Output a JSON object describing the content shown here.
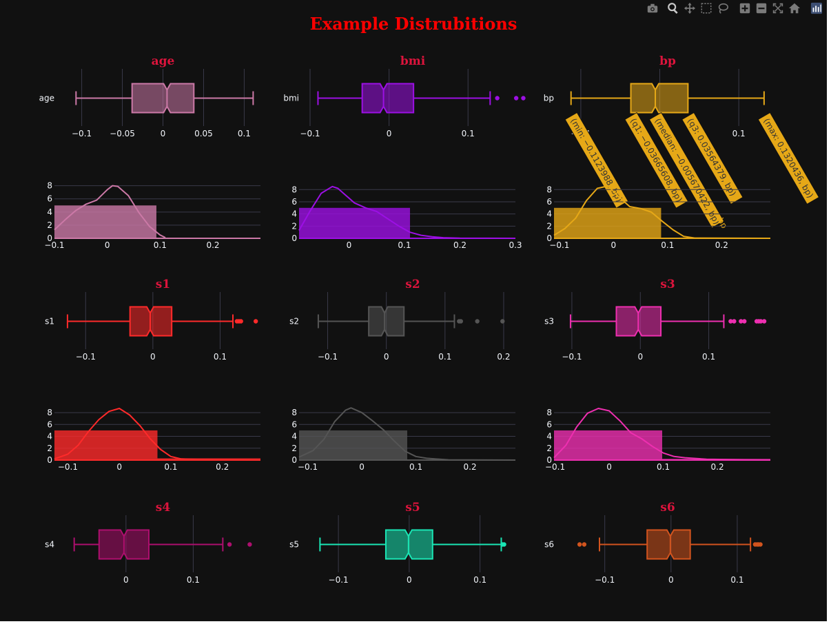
{
  "page": {
    "title": "Example Distrubitions",
    "title_color": "#ff0000",
    "subplot_title_color": "#dc143c",
    "background": "#111111",
    "gridline_color": "#3a3a4a",
    "tick_color": "#f2f5fa"
  },
  "modebar": {
    "buttons": [
      "camera-icon",
      "zoom-icon",
      "pan-icon",
      "box-select-icon",
      "lasso-select-icon",
      "zoom-in-icon",
      "zoom-out-icon",
      "autoscale-icon",
      "reset-axes-icon",
      "plotly-logo-icon"
    ]
  },
  "chart_data": [
    {
      "id": "age",
      "type": "box",
      "title": "age",
      "ylabel": "age",
      "color": "#cc79a7",
      "xlim": [
        -0.12,
        0.12
      ],
      "xticks": [
        -0.1,
        -0.05,
        0,
        0.05,
        0.1
      ],
      "xtick_labels": [
        "−0.1",
        "−0.05",
        "0",
        "0.05",
        "0.1"
      ],
      "box": {
        "min": -0.107,
        "q1": -0.038,
        "median": 0.005,
        "q3": 0.038,
        "max": 0.111
      },
      "outliers": []
    },
    {
      "id": "age",
      "type": "histogram+density",
      "color": "#cc79a7",
      "xlim": [
        -0.1,
        0.29
      ],
      "ylim": [
        0,
        8.8
      ],
      "xticks": [
        -0.1,
        0,
        0.1,
        0.2
      ],
      "xtick_labels": [
        "−0.1",
        "0",
        "0.1",
        "0.2"
      ],
      "yticks": [
        0,
        2,
        4,
        6,
        8
      ],
      "ytick_labels": [
        "0",
        "2",
        "4",
        "6",
        "8"
      ],
      "bars": [
        {
          "x0": -0.107,
          "x1": 0.093,
          "value": 5
        }
      ],
      "density": {
        "x": [
          -0.1,
          -0.08,
          -0.06,
          -0.04,
          -0.02,
          0,
          0.01,
          0.02,
          0.04,
          0.06,
          0.08,
          0.1,
          0.11
        ],
        "y": [
          1.3,
          2.8,
          4.2,
          5.2,
          5.8,
          7.4,
          8.0,
          7.9,
          6.5,
          3.9,
          1.8,
          0.5,
          0.1
        ]
      }
    },
    {
      "id": "bmi",
      "type": "box",
      "title": "bmi",
      "ylabel": "bmi",
      "color": "#9c10e4",
      "xlim": [
        -0.1,
        0.16
      ],
      "xticks": [
        -0.1,
        0,
        0.1
      ],
      "xtick_labels": [
        "−0.1",
        "0",
        "0.1"
      ],
      "box": {
        "min": -0.09,
        "q1": -0.034,
        "median": -0.007,
        "q3": 0.031,
        "max": 0.128
      },
      "outliers": [
        0.137,
        0.161,
        0.17
      ]
    },
    {
      "id": "bmi",
      "type": "histogram+density",
      "color": "#9c10e4",
      "xlim": [
        -0.09,
        0.3
      ],
      "ylim": [
        0,
        9.5
      ],
      "xticks": [
        0,
        0.1,
        0.2,
        0.3
      ],
      "xtick_labels": [
        "0",
        "0.1",
        "0.2",
        "0.3"
      ],
      "yticks": [
        0,
        2,
        4,
        6,
        8
      ],
      "ytick_labels": [
        "0",
        "2",
        "4",
        "6",
        "8"
      ],
      "bars": [
        {
          "x0": -0.09,
          "x1": 0.11,
          "value": 5
        }
      ],
      "density": {
        "x": [
          -0.09,
          -0.07,
          -0.05,
          -0.03,
          -0.02,
          -0.01,
          0.01,
          0.03,
          0.05,
          0.07,
          0.09,
          0.11,
          0.13,
          0.15,
          0.17,
          0.2,
          0.3
        ],
        "y": [
          1.3,
          4.5,
          7.4,
          8.5,
          8.2,
          7.4,
          5.8,
          5.0,
          4.4,
          3.2,
          2.0,
          1.0,
          0.5,
          0.25,
          0.1,
          0.02,
          0
        ]
      }
    },
    {
      "id": "bp",
      "type": "box",
      "title": "bp",
      "ylabel": "bp",
      "color": "#e6a817",
      "xlim": [
        -0.12,
        0.14
      ],
      "xticks": [
        -0.1,
        0,
        0.1
      ],
      "xtick_labels": [
        "−0.1",
        "0",
        "0.1"
      ],
      "box": {
        "min": -0.1123988,
        "q1": -0.03665608,
        "median": -0.005670422,
        "q3": 0.03564379,
        "max": 0.1320436
      },
      "outliers": [],
      "hover_labels": [
        "(min: −0.1123988, bp)",
        "(q1: −0.03665608, bp)",
        "(median: −0.005670422, bp)",
        "(q3: 0.03564379, bp)",
        "(max: 0.1320436, bp)"
      ],
      "hover_extra_label": "bp"
    },
    {
      "id": "bp",
      "type": "histogram+density",
      "color": "#e6a817",
      "xlim": [
        -0.11,
        0.29
      ],
      "ylim": [
        0,
        9.5
      ],
      "xticks": [
        -0.1,
        0,
        0.1,
        0.2
      ],
      "xtick_labels": [
        "−0.1",
        "0",
        "0.1",
        "0.2"
      ],
      "yticks": [
        0,
        2,
        4,
        6,
        8
      ],
      "ytick_labels": [
        "0",
        "2",
        "4",
        "6",
        "8"
      ],
      "bars": [
        {
          "x0": -0.112,
          "x1": 0.088,
          "value": 5
        }
      ],
      "density": {
        "x": [
          -0.11,
          -0.09,
          -0.07,
          -0.05,
          -0.03,
          -0.01,
          0.01,
          0.03,
          0.05,
          0.07,
          0.09,
          0.11,
          0.13,
          0.15,
          0.29
        ],
        "y": [
          0.5,
          1.6,
          3.3,
          6.2,
          8.2,
          8.6,
          6.8,
          5.2,
          4.9,
          4.3,
          2.8,
          1.4,
          0.3,
          0.05,
          0
        ]
      }
    },
    {
      "id": "s1",
      "type": "box",
      "title": "s1",
      "ylabel": "s1",
      "color": "#ff2a2a",
      "xlim": [
        -0.13,
        0.16
      ],
      "xticks": [
        -0.1,
        0,
        0.1
      ],
      "xtick_labels": [
        "−0.1",
        "0",
        "0.1"
      ],
      "box": {
        "min": -0.127,
        "q1": -0.034,
        "median": -0.004,
        "q3": 0.028,
        "max": 0.119
      },
      "outliers": [
        0.125,
        0.128,
        0.131,
        0.153
      ]
    },
    {
      "id": "s1",
      "type": "histogram+density",
      "color": "#ff2a2a",
      "xlim": [
        -0.126,
        0.274
      ],
      "ylim": [
        0,
        9.4
      ],
      "xticks": [
        -0.1,
        0,
        0.1,
        0.2
      ],
      "xtick_labels": [
        "−0.1",
        "0",
        "0.1",
        "0.2"
      ],
      "yticks": [
        0,
        2,
        4,
        6,
        8
      ],
      "ytick_labels": [
        "0",
        "2",
        "4",
        "6",
        "8"
      ],
      "bars": [
        {
          "x0": -0.126,
          "x1": 0.074,
          "value": 5
        },
        {
          "x0": 0.074,
          "x1": 0.274,
          "value": 0.3
        }
      ],
      "density": {
        "x": [
          -0.126,
          -0.1,
          -0.08,
          -0.06,
          -0.04,
          -0.02,
          0,
          0.02,
          0.04,
          0.06,
          0.08,
          0.1,
          0.12,
          0.15,
          0.2,
          0.274
        ],
        "y": [
          0.2,
          1.0,
          2.5,
          4.8,
          6.8,
          8.2,
          8.7,
          7.6,
          5.8,
          3.6,
          1.8,
          0.6,
          0.2,
          0.1,
          0.05,
          0
        ]
      }
    },
    {
      "id": "s2",
      "type": "box",
      "title": "s2",
      "ylabel": "s2",
      "color": "#555555",
      "xlim": [
        -0.13,
        0.22
      ],
      "xticks": [
        -0.1,
        0,
        0.1,
        0.2
      ],
      "xtick_labels": [
        "−0.1",
        "0",
        "0.1",
        "0.2"
      ],
      "box": {
        "min": -0.116,
        "q1": -0.03,
        "median": -0.003,
        "q3": 0.03,
        "max": 0.116
      },
      "outliers": [
        0.124,
        0.127,
        0.155,
        0.198
      ]
    },
    {
      "id": "s2",
      "type": "histogram+density",
      "color": "#555555",
      "xlim": [
        -0.116,
        0.284
      ],
      "ylim": [
        0,
        9.4
      ],
      "xticks": [
        -0.1,
        0,
        0.1,
        0.2
      ],
      "xtick_labels": [
        "−0.1",
        "0",
        "0.1",
        "0.2"
      ],
      "yticks": [
        0,
        2,
        4,
        6,
        8
      ],
      "ytick_labels": [
        "0",
        "2",
        "4",
        "6",
        "8"
      ],
      "bars": [
        {
          "x0": -0.116,
          "x1": 0.084,
          "value": 5
        }
      ],
      "density": {
        "x": [
          -0.116,
          -0.09,
          -0.07,
          -0.05,
          -0.03,
          -0.02,
          0,
          0.02,
          0.04,
          0.06,
          0.08,
          0.1,
          0.12,
          0.16,
          0.284
        ],
        "y": [
          0.5,
          1.6,
          3.5,
          6.5,
          8.4,
          8.8,
          8.0,
          6.6,
          5.1,
          3.2,
          1.5,
          0.6,
          0.3,
          0.05,
          0
        ]
      }
    },
    {
      "id": "s3",
      "type": "box",
      "title": "s3",
      "ylabel": "s3",
      "color": "#ee2fb0",
      "xlim": [
        -0.11,
        0.19
      ],
      "xticks": [
        -0.1,
        0,
        0.1
      ],
      "xtick_labels": [
        "−0.1",
        "0",
        "0.1"
      ],
      "box": {
        "min": -0.102,
        "q1": -0.035,
        "median": -0.003,
        "q3": 0.03,
        "max": 0.122
      },
      "outliers": [
        0.132,
        0.137,
        0.147,
        0.152,
        0.17,
        0.173,
        0.176,
        0.181
      ]
    },
    {
      "id": "s3",
      "type": "histogram+density",
      "color": "#ee2fb0",
      "xlim": [
        -0.102,
        0.298
      ],
      "ylim": [
        0,
        9.4
      ],
      "xticks": [
        -0.1,
        0,
        0.1,
        0.2
      ],
      "xtick_labels": [
        "−0.1",
        "0",
        "0.1",
        "0.2"
      ],
      "yticks": [
        0,
        2,
        4,
        6,
        8
      ],
      "ytick_labels": [
        "0",
        "2",
        "4",
        "6",
        "8"
      ],
      "bars": [
        {
          "x0": -0.102,
          "x1": 0.098,
          "value": 5
        },
        {
          "x0": 0.098,
          "x1": 0.298,
          "value": 0.2
        }
      ],
      "density": {
        "x": [
          -0.102,
          -0.08,
          -0.06,
          -0.04,
          -0.02,
          0,
          0.02,
          0.04,
          0.06,
          0.08,
          0.1,
          0.12,
          0.14,
          0.18,
          0.298
        ],
        "y": [
          0.4,
          2.5,
          5.6,
          7.9,
          8.7,
          8.3,
          6.6,
          4.6,
          3.6,
          2.3,
          1.2,
          0.6,
          0.4,
          0.15,
          0
        ]
      }
    },
    {
      "id": "s4",
      "type": "box",
      "title": "s4",
      "ylabel": "s4",
      "color": "#ad0f6e",
      "xlim": [
        -0.09,
        0.2
      ],
      "xticks": [
        0,
        0.1
      ],
      "xtick_labels": [
        "0",
        "0.1"
      ],
      "box": {
        "min": -0.077,
        "q1": -0.04,
        "median": -0.003,
        "q3": 0.034,
        "max": 0.144
      },
      "outliers": [
        0.154,
        0.184
      ]
    },
    {
      "id": "s5",
      "type": "box",
      "title": "s5",
      "ylabel": "s5",
      "color": "#1ae6b5",
      "xlim": [
        -0.14,
        0.15
      ],
      "xticks": [
        -0.1,
        0,
        0.1
      ],
      "xtick_labels": [
        "−0.1",
        "0",
        "0.1"
      ],
      "box": {
        "min": -0.126,
        "q1": -0.033,
        "median": -0.001,
        "q3": 0.033,
        "max": 0.13
      },
      "outliers": [
        0.132,
        0.134
      ]
    },
    {
      "id": "s6",
      "type": "box",
      "title": "s6",
      "ylabel": "s6",
      "color": "#d2541e",
      "xlim": [
        -0.16,
        0.15
      ],
      "xticks": [
        -0.1,
        0,
        0.1
      ],
      "xtick_labels": [
        "−0.1",
        "0",
        "0.1"
      ],
      "box": {
        "min": -0.108,
        "q1": -0.036,
        "median": -0.001,
        "q3": 0.029,
        "max": 0.12
      },
      "outliers": [
        -0.138,
        -0.131,
        0.127,
        0.13,
        0.132,
        0.135
      ]
    }
  ]
}
